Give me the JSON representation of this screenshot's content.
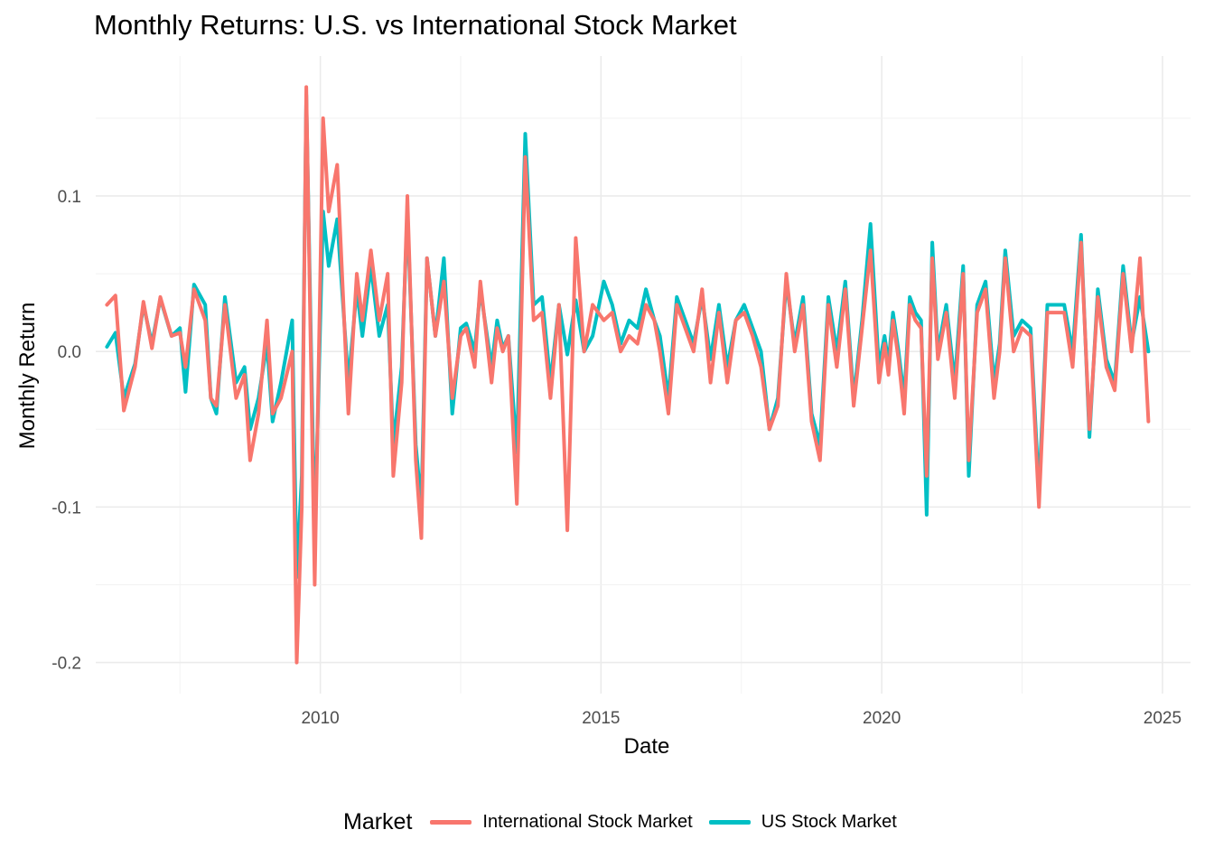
{
  "chart_data": {
    "type": "line",
    "title": "Monthly Returns: U.S. vs International Stock Market",
    "xlabel": "Date",
    "ylabel": "Monthly Return",
    "xlim": [
      2006.0,
      2025.5
    ],
    "ylim": [
      -0.22,
      0.19
    ],
    "x_ticks": [
      2010,
      2015,
      2020,
      2025
    ],
    "x_tick_labels": [
      "2010",
      "2015",
      "2020",
      "2025"
    ],
    "y_ticks": [
      -0.2,
      -0.1,
      0.0,
      0.1
    ],
    "y_tick_labels": [
      "-0.2",
      "-0.1",
      "0.0",
      "0.1"
    ],
    "grid": true,
    "legend_position": "bottom",
    "legend_title": "Market",
    "series": [
      {
        "name": "US Stock Market",
        "color": "#00BFC4",
        "points": [
          [
            2006.2,
            0.003
          ],
          [
            2006.35,
            0.012
          ],
          [
            2006.5,
            -0.03
          ],
          [
            2006.7,
            -0.008
          ],
          [
            2006.85,
            0.03
          ],
          [
            2007.0,
            0.005
          ],
          [
            2007.15,
            0.034
          ],
          [
            2007.35,
            0.01
          ],
          [
            2007.5,
            0.015
          ],
          [
            2007.6,
            -0.026
          ],
          [
            2007.75,
            0.043
          ],
          [
            2007.95,
            0.03
          ],
          [
            2008.05,
            -0.03
          ],
          [
            2008.15,
            -0.04
          ],
          [
            2008.3,
            0.035
          ],
          [
            2008.5,
            -0.02
          ],
          [
            2008.65,
            -0.01
          ],
          [
            2008.75,
            -0.05
          ],
          [
            2008.9,
            -0.03
          ],
          [
            2009.05,
            0.005
          ],
          [
            2009.15,
            -0.045
          ],
          [
            2009.3,
            -0.02
          ],
          [
            2009.5,
            0.02
          ],
          [
            2009.58,
            -0.145
          ],
          [
            2009.67,
            -0.08
          ],
          [
            2009.75,
            0.165
          ],
          [
            2009.9,
            -0.12
          ],
          [
            2010.05,
            0.09
          ],
          [
            2010.15,
            0.055
          ],
          [
            2010.3,
            0.085
          ],
          [
            2010.5,
            -0.02
          ],
          [
            2010.65,
            0.04
          ],
          [
            2010.75,
            0.01
          ],
          [
            2010.9,
            0.055
          ],
          [
            2011.05,
            0.01
          ],
          [
            2011.2,
            0.03
          ],
          [
            2011.3,
            -0.06
          ],
          [
            2011.45,
            -0.01
          ],
          [
            2011.55,
            0.09
          ],
          [
            2011.7,
            -0.06
          ],
          [
            2011.8,
            -0.1
          ],
          [
            2011.9,
            0.06
          ],
          [
            2012.05,
            0.01
          ],
          [
            2012.2,
            0.06
          ],
          [
            2012.35,
            -0.04
          ],
          [
            2012.5,
            0.015
          ],
          [
            2012.6,
            0.018
          ],
          [
            2012.75,
            0.0
          ],
          [
            2012.85,
            0.04
          ],
          [
            2013.05,
            -0.01
          ],
          [
            2013.15,
            0.02
          ],
          [
            2013.25,
            0.002
          ],
          [
            2013.35,
            0.01
          ],
          [
            2013.5,
            -0.065
          ],
          [
            2013.65,
            0.14
          ],
          [
            2013.8,
            0.03
          ],
          [
            2013.95,
            0.035
          ],
          [
            2014.1,
            -0.02
          ],
          [
            2014.25,
            0.03
          ],
          [
            2014.4,
            -0.002
          ],
          [
            2014.55,
            0.033
          ],
          [
            2014.7,
            0.0
          ],
          [
            2014.85,
            0.01
          ],
          [
            2015.05,
            0.045
          ],
          [
            2015.2,
            0.03
          ],
          [
            2015.35,
            0.005
          ],
          [
            2015.5,
            0.02
          ],
          [
            2015.65,
            0.015
          ],
          [
            2015.8,
            0.04
          ],
          [
            2015.95,
            0.02
          ],
          [
            2016.05,
            0.01
          ],
          [
            2016.2,
            -0.03
          ],
          [
            2016.35,
            0.035
          ],
          [
            2016.5,
            0.02
          ],
          [
            2016.65,
            0.005
          ],
          [
            2016.8,
            0.035
          ],
          [
            2016.95,
            -0.005
          ],
          [
            2017.1,
            0.03
          ],
          [
            2017.25,
            -0.01
          ],
          [
            2017.4,
            0.02
          ],
          [
            2017.55,
            0.03
          ],
          [
            2017.7,
            0.015
          ],
          [
            2017.85,
            0.0
          ],
          [
            2018.0,
            -0.05
          ],
          [
            2018.15,
            -0.03
          ],
          [
            2018.3,
            0.045
          ],
          [
            2018.45,
            0.005
          ],
          [
            2018.6,
            0.035
          ],
          [
            2018.75,
            -0.04
          ],
          [
            2018.9,
            -0.06
          ],
          [
            2019.05,
            0.035
          ],
          [
            2019.2,
            0.0
          ],
          [
            2019.35,
            0.045
          ],
          [
            2019.5,
            -0.03
          ],
          [
            2019.65,
            0.02
          ],
          [
            2019.8,
            0.082
          ],
          [
            2019.95,
            -0.01
          ],
          [
            2020.05,
            0.01
          ],
          [
            2020.12,
            -0.008
          ],
          [
            2020.2,
            0.025
          ],
          [
            2020.3,
            0.0
          ],
          [
            2020.4,
            -0.03
          ],
          [
            2020.5,
            0.035
          ],
          [
            2020.6,
            0.025
          ],
          [
            2020.7,
            0.02
          ],
          [
            2020.8,
            -0.105
          ],
          [
            2020.9,
            0.07
          ],
          [
            2021.0,
            0.0
          ],
          [
            2021.15,
            0.03
          ],
          [
            2021.3,
            -0.02
          ],
          [
            2021.45,
            0.055
          ],
          [
            2021.55,
            -0.08
          ],
          [
            2021.7,
            0.03
          ],
          [
            2021.85,
            0.045
          ],
          [
            2022.0,
            -0.02
          ],
          [
            2022.1,
            0.005
          ],
          [
            2022.2,
            0.065
          ],
          [
            2022.35,
            0.01
          ],
          [
            2022.5,
            0.02
          ],
          [
            2022.65,
            0.015
          ],
          [
            2022.8,
            -0.09
          ],
          [
            2022.95,
            0.03
          ],
          [
            2023.1,
            0.03
          ],
          [
            2023.25,
            0.03
          ],
          [
            2023.4,
            0.0
          ],
          [
            2023.55,
            0.075
          ],
          [
            2023.7,
            -0.055
          ],
          [
            2023.85,
            0.04
          ],
          [
            2024.0,
            -0.005
          ],
          [
            2024.15,
            -0.02
          ],
          [
            2024.3,
            0.055
          ],
          [
            2024.45,
            0.005
          ],
          [
            2024.6,
            0.035
          ],
          [
            2024.75,
            0.0
          ]
        ]
      },
      {
        "name": "International Stock Market",
        "color": "#F8766D",
        "points": [
          [
            2006.2,
            0.03
          ],
          [
            2006.35,
            0.036
          ],
          [
            2006.5,
            -0.038
          ],
          [
            2006.7,
            -0.01
          ],
          [
            2006.85,
            0.032
          ],
          [
            2007.0,
            0.002
          ],
          [
            2007.15,
            0.035
          ],
          [
            2007.35,
            0.01
          ],
          [
            2007.5,
            0.012
          ],
          [
            2007.6,
            -0.01
          ],
          [
            2007.75,
            0.04
          ],
          [
            2007.95,
            0.02
          ],
          [
            2008.05,
            -0.03
          ],
          [
            2008.15,
            -0.035
          ],
          [
            2008.3,
            0.03
          ],
          [
            2008.5,
            -0.03
          ],
          [
            2008.65,
            -0.015
          ],
          [
            2008.75,
            -0.07
          ],
          [
            2008.9,
            -0.04
          ],
          [
            2009.05,
            0.02
          ],
          [
            2009.15,
            -0.04
          ],
          [
            2009.3,
            -0.03
          ],
          [
            2009.5,
            0.0
          ],
          [
            2009.58,
            -0.2
          ],
          [
            2009.67,
            -0.1
          ],
          [
            2009.75,
            0.17
          ],
          [
            2009.9,
            -0.15
          ],
          [
            2010.05,
            0.15
          ],
          [
            2010.15,
            0.09
          ],
          [
            2010.3,
            0.12
          ],
          [
            2010.5,
            -0.04
          ],
          [
            2010.65,
            0.05
          ],
          [
            2010.75,
            0.02
          ],
          [
            2010.9,
            0.065
          ],
          [
            2011.05,
            0.02
          ],
          [
            2011.2,
            0.05
          ],
          [
            2011.3,
            -0.08
          ],
          [
            2011.45,
            -0.02
          ],
          [
            2011.55,
            0.1
          ],
          [
            2011.7,
            -0.07
          ],
          [
            2011.8,
            -0.12
          ],
          [
            2011.9,
            0.06
          ],
          [
            2012.05,
            0.01
          ],
          [
            2012.2,
            0.045
          ],
          [
            2012.35,
            -0.03
          ],
          [
            2012.5,
            0.01
          ],
          [
            2012.6,
            0.015
          ],
          [
            2012.75,
            -0.01
          ],
          [
            2012.85,
            0.045
          ],
          [
            2013.05,
            -0.02
          ],
          [
            2013.15,
            0.015
          ],
          [
            2013.25,
            0.0
          ],
          [
            2013.35,
            0.01
          ],
          [
            2013.5,
            -0.098
          ],
          [
            2013.65,
            0.125
          ],
          [
            2013.8,
            0.02
          ],
          [
            2013.95,
            0.025
          ],
          [
            2014.1,
            -0.03
          ],
          [
            2014.25,
            0.03
          ],
          [
            2014.4,
            -0.115
          ],
          [
            2014.55,
            0.073
          ],
          [
            2014.7,
            0.0
          ],
          [
            2014.85,
            0.03
          ],
          [
            2015.05,
            0.02
          ],
          [
            2015.2,
            0.025
          ],
          [
            2015.35,
            0.0
          ],
          [
            2015.5,
            0.01
          ],
          [
            2015.65,
            0.005
          ],
          [
            2015.8,
            0.03
          ],
          [
            2015.95,
            0.02
          ],
          [
            2016.05,
            0.0
          ],
          [
            2016.2,
            -0.04
          ],
          [
            2016.35,
            0.03
          ],
          [
            2016.5,
            0.015
          ],
          [
            2016.65,
            0.0
          ],
          [
            2016.8,
            0.04
          ],
          [
            2016.95,
            -0.02
          ],
          [
            2017.1,
            0.025
          ],
          [
            2017.25,
            -0.02
          ],
          [
            2017.4,
            0.02
          ],
          [
            2017.55,
            0.025
          ],
          [
            2017.7,
            0.01
          ],
          [
            2017.85,
            -0.01
          ],
          [
            2018.0,
            -0.05
          ],
          [
            2018.15,
            -0.035
          ],
          [
            2018.3,
            0.05
          ],
          [
            2018.45,
            0.0
          ],
          [
            2018.6,
            0.03
          ],
          [
            2018.75,
            -0.045
          ],
          [
            2018.9,
            -0.07
          ],
          [
            2019.05,
            0.03
          ],
          [
            2019.2,
            -0.01
          ],
          [
            2019.35,
            0.04
          ],
          [
            2019.5,
            -0.035
          ],
          [
            2019.65,
            0.015
          ],
          [
            2019.8,
            0.065
          ],
          [
            2019.95,
            -0.02
          ],
          [
            2020.05,
            0.005
          ],
          [
            2020.12,
            -0.015
          ],
          [
            2020.2,
            0.02
          ],
          [
            2020.3,
            -0.005
          ],
          [
            2020.4,
            -0.04
          ],
          [
            2020.5,
            0.03
          ],
          [
            2020.6,
            0.02
          ],
          [
            2020.7,
            0.015
          ],
          [
            2020.8,
            -0.08
          ],
          [
            2020.9,
            0.06
          ],
          [
            2021.0,
            -0.005
          ],
          [
            2021.15,
            0.025
          ],
          [
            2021.3,
            -0.03
          ],
          [
            2021.45,
            0.05
          ],
          [
            2021.55,
            -0.07
          ],
          [
            2021.7,
            0.025
          ],
          [
            2021.85,
            0.04
          ],
          [
            2022.0,
            -0.03
          ],
          [
            2022.1,
            0.0
          ],
          [
            2022.2,
            0.06
          ],
          [
            2022.35,
            0.0
          ],
          [
            2022.5,
            0.015
          ],
          [
            2022.65,
            0.01
          ],
          [
            2022.8,
            -0.1
          ],
          [
            2022.95,
            0.025
          ],
          [
            2023.1,
            0.025
          ],
          [
            2023.25,
            0.025
          ],
          [
            2023.4,
            -0.01
          ],
          [
            2023.55,
            0.07
          ],
          [
            2023.7,
            -0.05
          ],
          [
            2023.85,
            0.035
          ],
          [
            2024.0,
            -0.01
          ],
          [
            2024.15,
            -0.025
          ],
          [
            2024.3,
            0.05
          ],
          [
            2024.45,
            0.0
          ],
          [
            2024.6,
            0.06
          ],
          [
            2024.75,
            -0.045
          ]
        ]
      }
    ]
  }
}
